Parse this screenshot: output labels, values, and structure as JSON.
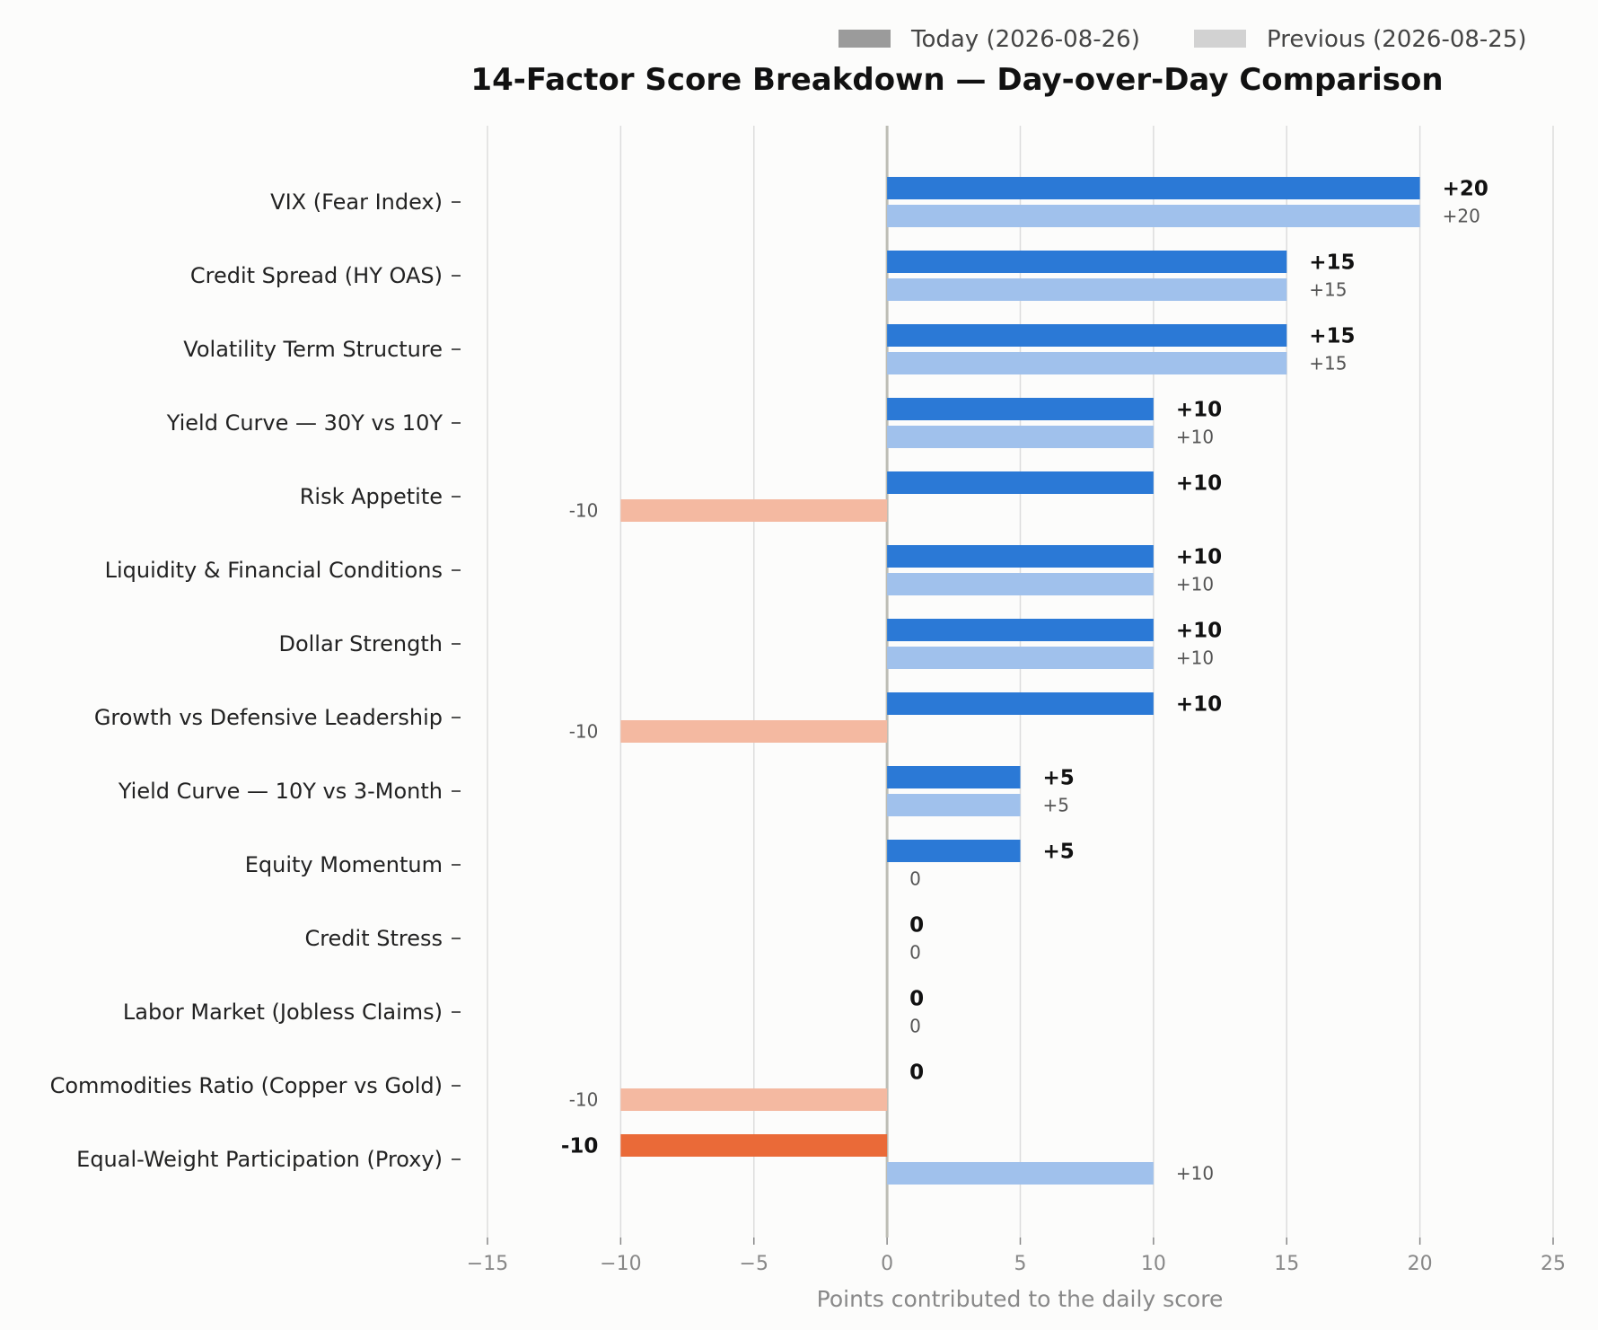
{
  "chart_data": {
    "type": "bar",
    "orientation": "horizontal",
    "title": "14-Factor Score Breakdown — Day-over-Day Comparison",
    "xlabel": "Points contributed to the daily score",
    "ylabel": "",
    "xlim": [
      -15,
      25
    ],
    "xticks": [
      -15,
      -10,
      -5,
      0,
      5,
      10,
      15,
      20,
      25
    ],
    "xtick_labels": [
      "−15",
      "−10",
      "−5",
      "0",
      "5",
      "10",
      "15",
      "20",
      "25"
    ],
    "grid": "vertical",
    "legend_position": "top-right",
    "categories": [
      "VIX (Fear Index)",
      "Credit Spread (HY OAS)",
      "Volatility Term Structure",
      "Yield Curve — 30Y vs 10Y",
      "Risk Appetite",
      "Liquidity & Financial Conditions",
      "Dollar Strength",
      "Growth vs Defensive Leadership",
      "Yield Curve — 10Y vs 3-Month",
      "Equity Momentum",
      "Credit Stress",
      "Labor Market (Jobless Claims)",
      "Commodities Ratio (Copper vs Gold)",
      "Equal-Weight Participation (Proxy)"
    ],
    "series": [
      {
        "name": "Today (2026-08-26)",
        "values": [
          20,
          15,
          15,
          10,
          10,
          10,
          10,
          10,
          5,
          5,
          0,
          0,
          0,
          -10
        ],
        "labels": [
          "+20",
          "+15",
          "+15",
          "+10",
          "+10",
          "+10",
          "+10",
          "+10",
          "+5",
          "+5",
          "0",
          "0",
          "0",
          "-10"
        ]
      },
      {
        "name": "Previous (2026-08-25)",
        "values": [
          20,
          15,
          15,
          10,
          -10,
          10,
          10,
          -10,
          5,
          0,
          0,
          0,
          -10,
          10
        ],
        "labels": [
          "+20",
          "+15",
          "+15",
          "+10",
          "-10",
          "+10",
          "+10",
          "-10",
          "+5",
          "0",
          "0",
          "0",
          "-10",
          "+10"
        ]
      }
    ],
    "colors": {
      "today_positive": "#2b79d6",
      "today_negative": "#ea6a38",
      "previous_positive": "#a0c1ec",
      "previous_negative": "#f4b9a1",
      "legend_today": "#9b9b9b",
      "legend_previous": "#d2d2d2",
      "grid": "#dddddd",
      "zero_line": "#bdbdb5"
    }
  }
}
